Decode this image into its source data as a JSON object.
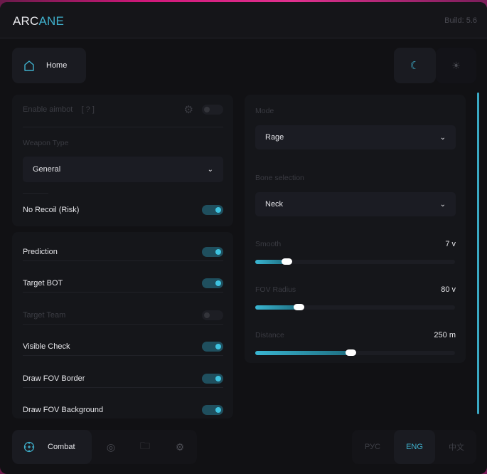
{
  "header": {
    "title_a": "ARC",
    "title_b": "ANE",
    "build": "Build: 5.6"
  },
  "top": {
    "home_label": "Home",
    "theme_dark": "moon-icon",
    "theme_light": "sun-icon"
  },
  "aim_panel": {
    "enable_aimbot": "Enable aimbot",
    "help": "[ ? ]",
    "enable_aimbot_on": false,
    "weapon_type_label": "Weapon Type",
    "weapon_type_value": "General",
    "no_recoil": "No Recoil (Risk)",
    "no_recoil_on": true
  },
  "options": [
    {
      "label": "Prediction",
      "on": true,
      "enabled": true
    },
    {
      "label": "Target BOT",
      "on": true,
      "enabled": true
    },
    {
      "label": "Target Team",
      "on": false,
      "enabled": false
    },
    {
      "label": "Visible Check",
      "on": true,
      "enabled": true
    },
    {
      "label": "Draw FOV Border",
      "on": true,
      "enabled": true
    },
    {
      "label": "Draw FOV Background",
      "on": true,
      "enabled": true
    }
  ],
  "right_panel": {
    "mode_label": "Mode",
    "mode_value": "Rage",
    "bone_label": "Bone selection",
    "bone_value": "Neck",
    "sliders": [
      {
        "label": "Smooth",
        "value": "7 v",
        "fraction": 0.16
      },
      {
        "label": "FOV Radius",
        "value": "80 v",
        "fraction": 0.22
      },
      {
        "label": "Distance",
        "value": "250 m",
        "fraction": 0.48
      }
    ]
  },
  "bottom": {
    "combat_label": "Combat",
    "langs": [
      "РУС",
      "ENG",
      "中文"
    ],
    "active_lang": "ENG"
  },
  "colors": {
    "accent": "#3fb0cc",
    "bg": "#111114"
  }
}
